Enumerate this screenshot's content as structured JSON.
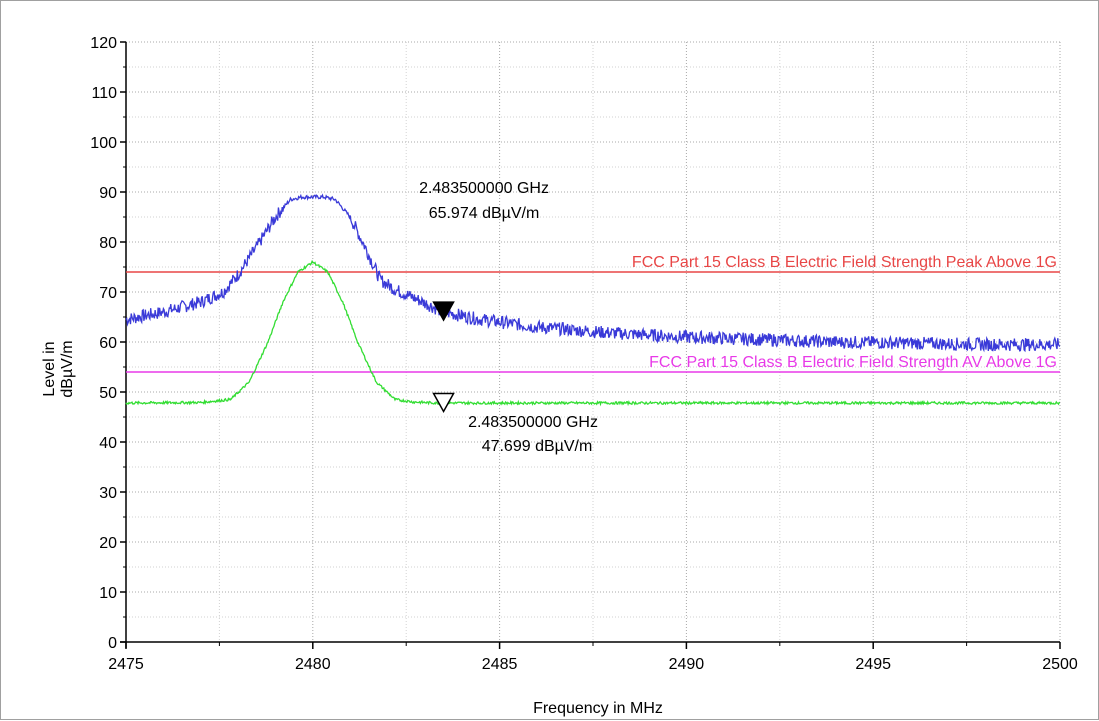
{
  "chart_data": {
    "type": "line",
    "xlabel": "Frequency in MHz",
    "ylabel_line1": "Level in",
    "ylabel_line2": "dBµV/m",
    "xlim": [
      2475,
      2500
    ],
    "ylim": [
      0,
      120
    ],
    "x_ticks": [
      2475,
      2480,
      2485,
      2490,
      2495,
      2500
    ],
    "y_ticks": [
      0,
      10,
      20,
      30,
      40,
      50,
      60,
      70,
      80,
      90,
      100,
      110,
      120
    ],
    "grid": true,
    "colors": {
      "peak": "#3a3ad8",
      "average": "#33dd33",
      "peak_limit": "#e84646",
      "av_limit": "#e83ae8"
    },
    "series": [
      {
        "x": [
          2475,
          2476,
          2477,
          2477.6,
          2478,
          2478.5,
          2479,
          2479.4,
          2479.7,
          2480.0,
          2480.3,
          2480.6,
          2481.0,
          2481.4,
          2481.8,
          2482.2,
          2482.8,
          2483.5,
          2484.5,
          2486,
          2488,
          2490,
          2492,
          2494,
          2496,
          2498,
          2500
        ],
        "values": [
          64.5,
          66,
          68,
          70,
          73.5,
          79,
          85,
          88.5,
          89,
          89,
          89,
          88.5,
          85,
          79,
          72.5,
          70.5,
          68.5,
          66,
          64.5,
          63,
          61.8,
          61,
          60.5,
          60,
          59.8,
          59.5,
          59.5
        ]
      },
      {
        "x": [
          2475,
          2477,
          2477.8,
          2478.3,
          2478.8,
          2479.2,
          2479.6,
          2480.0,
          2480.4,
          2480.8,
          2481.2,
          2481.7,
          2482.2,
          2482.7,
          2483.3,
          2484,
          2486,
          2490,
          2495,
          2500
        ],
        "values": [
          47.8,
          47.9,
          48.5,
          52,
          60,
          68,
          74,
          76,
          74,
          68,
          60,
          52,
          48.5,
          48,
          47.8,
          47.8,
          47.8,
          47.8,
          47.8,
          47.8
        ]
      }
    ],
    "limit_lines": [
      {
        "label": "FCC Part 15 Class B Electric Field Strength Peak Above 1G",
        "value": 74
      },
      {
        "label": "FCC Part 15 Class B Electric Field Strength AV Above 1G",
        "value": 54
      }
    ],
    "markers": [
      {
        "x": 2483.5,
        "y": 65.974,
        "style": "filled",
        "freq_label": "2.483500000 GHz",
        "level_label": "65.974 dBµV/m"
      },
      {
        "x": 2483.5,
        "y": 47.699,
        "style": "hollow",
        "freq_label": "2.483500000 GHz",
        "level_label": "47.699 dBµV/m"
      }
    ]
  }
}
